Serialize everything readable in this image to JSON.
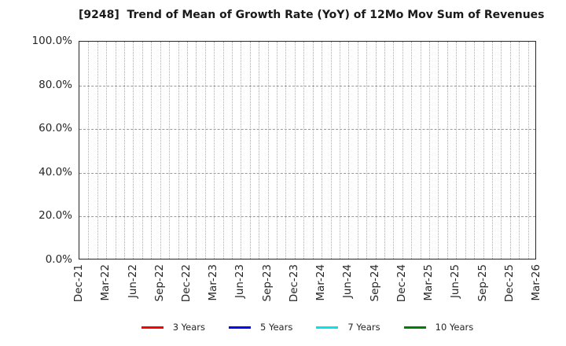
{
  "chart_data": {
    "type": "line",
    "title": "[9248]  Trend of Mean of Growth Rate (YoY) of 12Mo Mov Sum of Revenues",
    "x_tick_labels": [
      "Dec-21",
      "Mar-22",
      "Jun-22",
      "Sep-22",
      "Dec-22",
      "Mar-23",
      "Jun-23",
      "Sep-23",
      "Dec-23",
      "Mar-24",
      "Jun-24",
      "Sep-24",
      "Dec-24",
      "Mar-25",
      "Jun-25",
      "Sep-25",
      "Dec-25",
      "Mar-26"
    ],
    "x_minor_intervals_per_tick": 3,
    "y_tick_labels": [
      "0.0%",
      "20.0%",
      "40.0%",
      "60.0%",
      "80.0%",
      "100.0%"
    ],
    "ylim": [
      0,
      100
    ],
    "y_unit": "%",
    "grid": true,
    "legend_position": "bottom",
    "series": [
      {
        "name": "3 Years",
        "color": "#ff0000",
        "values": []
      },
      {
        "name": "5 Years",
        "color": "#0000ff",
        "values": []
      },
      {
        "name": "7 Years",
        "color": "#00e5ee",
        "values": []
      },
      {
        "name": "10 Years",
        "color": "#008000",
        "values": []
      }
    ],
    "colors": {
      "background": "#ffffff",
      "axis_border": "#262626",
      "grid_vertical": "#b0b0b0",
      "grid_horizontal": "#999999",
      "tick_text": "#262626",
      "title_text": "#1a1a1a"
    }
  }
}
